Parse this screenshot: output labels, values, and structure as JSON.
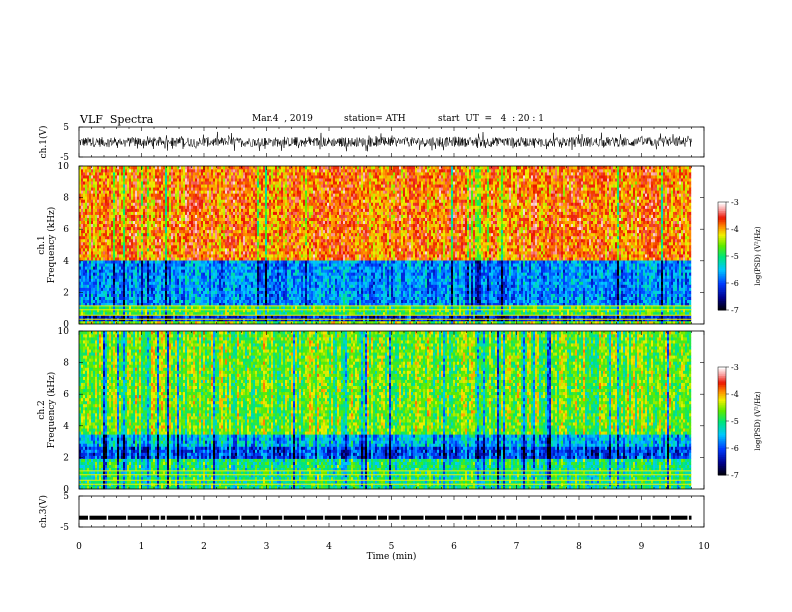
{
  "header": {
    "title": "VLF  Spectra",
    "date": "Mar.4  , 2019",
    "station": "station= ATH",
    "start": "start  UT  =   4  : 20 : 1"
  },
  "colorbar": {
    "label": "log(PSD) (V²/Hz)",
    "ticks": [
      -3,
      -4,
      -5,
      -6,
      -7
    ]
  },
  "chart_data": [
    {
      "type": "line",
      "name": "ch1-waveform",
      "ylabel": "ch.1(V)",
      "ylim": [
        -5,
        5
      ],
      "yticks": [
        5,
        -5
      ],
      "xlim": [
        0,
        10
      ],
      "x_end": 9.8,
      "amplitude_range": [
        -2,
        2
      ]
    },
    {
      "type": "heatmap",
      "name": "ch1-spectrogram",
      "ylabel": "ch.1\nFrequency (kHz)",
      "ylim": [
        0,
        10
      ],
      "yticks": [
        0,
        2,
        4,
        6,
        8,
        10
      ],
      "xlim": [
        0,
        10
      ],
      "x_end": 9.8,
      "bands": [
        {
          "from": 0,
          "to": 0.25,
          "level": -4.5
        },
        {
          "from": 0.25,
          "to": 0.6,
          "level": -6.2
        },
        {
          "from": 0.6,
          "to": 1.1,
          "level": -4.8
        },
        {
          "from": 1.1,
          "to": 4.0,
          "level": -5.7
        },
        {
          "from": 4.0,
          "to": 10.0,
          "level": -3.8
        }
      ]
    },
    {
      "type": "heatmap",
      "name": "ch2-spectrogram",
      "ylabel": "ch.2\nFrequency (kHz)",
      "ylim": [
        0,
        10
      ],
      "yticks": [
        0,
        2,
        4,
        6,
        8,
        10
      ],
      "xlim": [
        0,
        10
      ],
      "x_end": 9.8,
      "bands": [
        {
          "from": 0,
          "to": 1.9,
          "level": -5.0
        },
        {
          "from": 1.9,
          "to": 2.6,
          "level": -6.0
        },
        {
          "from": 2.6,
          "to": 3.5,
          "level": -5.5
        },
        {
          "from": 3.5,
          "to": 10.0,
          "level": -4.6
        }
      ]
    },
    {
      "type": "line",
      "name": "ch3-waveform",
      "ylabel": "ch.3(V)",
      "ylim": [
        -5,
        5
      ],
      "yticks": [
        5,
        -5
      ],
      "xlim": [
        0,
        10
      ],
      "x_end": 9.8,
      "level": -2,
      "xlabel": "Time  (min)",
      "xticks": [
        0,
        1,
        2,
        3,
        4,
        5,
        6,
        7,
        8,
        9,
        10
      ]
    }
  ]
}
